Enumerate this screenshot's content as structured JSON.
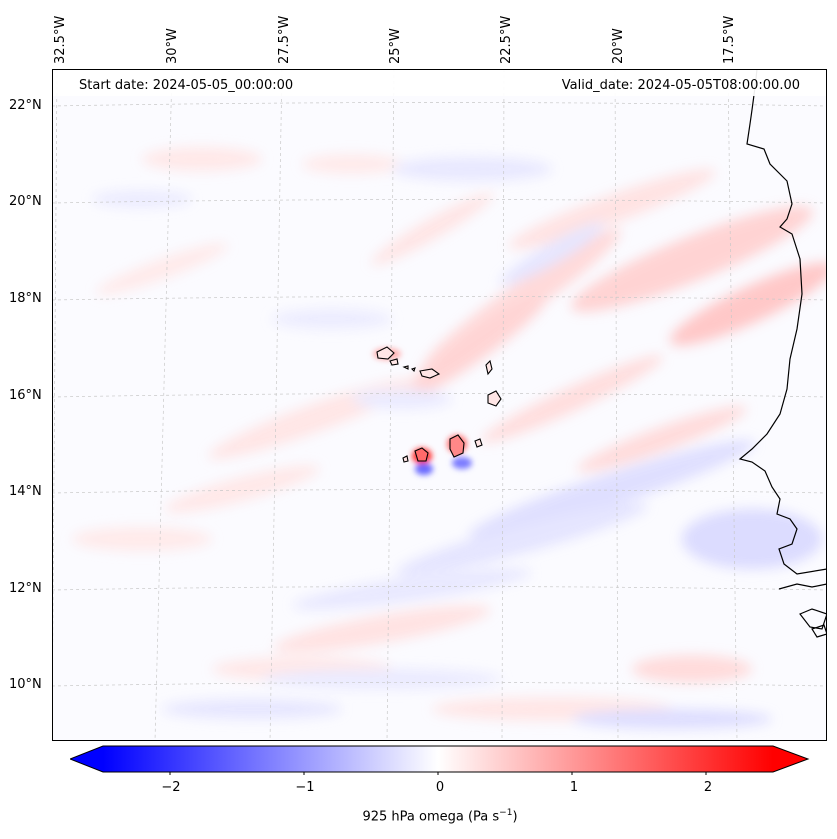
{
  "map": {
    "start_date_text": "Start date: 2024-05-05_00:00:00",
    "valid_date_text": "Valid_date: 2024-05-05T08:00:00.00",
    "lon_labels": [
      "32.5°W",
      "30°W",
      "27.5°W",
      "25°W",
      "22.5°W",
      "20°W",
      "17.5°W"
    ],
    "lat_labels": [
      "22°N",
      "20°N",
      "18°N",
      "16°N",
      "14°N",
      "12°N",
      "10°N"
    ],
    "colors": {
      "negative": "#0000ff",
      "neutral": "#ffffff",
      "positive": "#ff0000",
      "coastline": "#000000"
    }
  },
  "colorbar": {
    "ticks": [
      "−2",
      "−1",
      "0",
      "1",
      "2"
    ],
    "tick_values": [
      -2,
      -1,
      0,
      1,
      2
    ],
    "range": [
      -2.5,
      2.5
    ],
    "label": "925 hPa omega (Pa s",
    "label_sup": "−1",
    "label_close": ")"
  }
}
